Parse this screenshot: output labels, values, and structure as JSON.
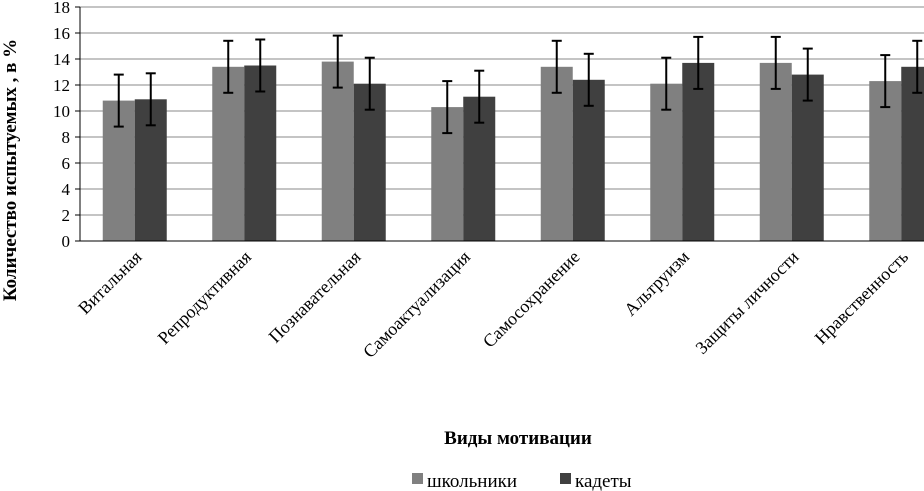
{
  "chart_data": {
    "type": "bar",
    "title": "",
    "xlabel": "Виды мотивации",
    "ylabel": "Количество испытуемых , в %",
    "ylim": [
      0,
      18
    ],
    "yticks": [
      0,
      2,
      4,
      6,
      8,
      10,
      12,
      14,
      16,
      18
    ],
    "grid": "horizontal",
    "legend": "bottom",
    "categories": [
      "Витальная",
      "Репродуктивная",
      "Познавательная",
      "Самоактуализация",
      "Самосохранение",
      "Альтруизм",
      "Защиты личности",
      "Нравственность"
    ],
    "series": [
      {
        "name": "школьники",
        "color": "#808080",
        "values": [
          10.8,
          13.4,
          13.8,
          10.3,
          13.4,
          12.1,
          13.7,
          12.3
        ],
        "errors": [
          2.0,
          2.0,
          2.0,
          2.0,
          2.0,
          2.0,
          2.0,
          2.0
        ]
      },
      {
        "name": "кадеты",
        "color": "#404040",
        "values": [
          10.9,
          13.5,
          12.1,
          11.1,
          12.4,
          13.7,
          12.8,
          13.4
        ],
        "errors": [
          2.0,
          2.0,
          2.0,
          2.0,
          2.0,
          2.0,
          2.0,
          2.0
        ]
      }
    ]
  }
}
